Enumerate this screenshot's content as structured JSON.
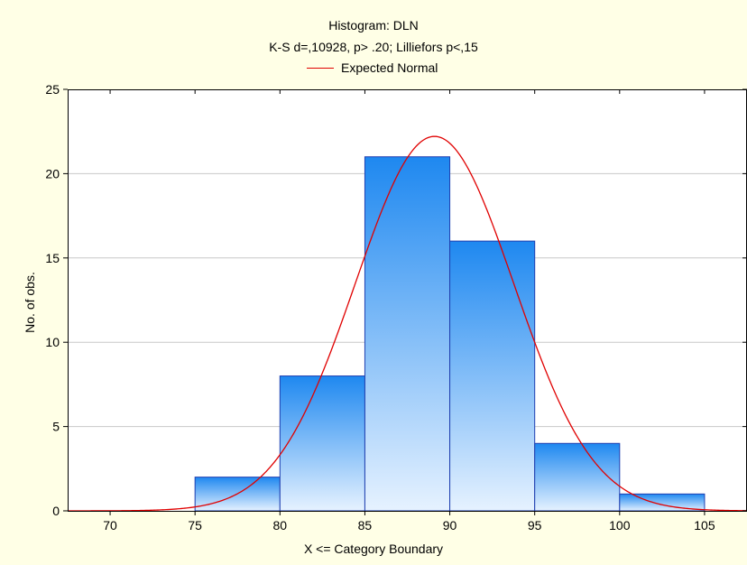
{
  "chart_data": {
    "type": "bar",
    "title": "Histogram: DLN",
    "subtitle": "K-S d=,10928, p> .20; Lilliefors p<,15",
    "xlabel": "X <= Category Boundary",
    "ylabel": "No. of obs.",
    "xlim": [
      67.5,
      107.5
    ],
    "ylim": [
      0,
      25
    ],
    "x_ticks": [
      70,
      75,
      80,
      85,
      90,
      95,
      100,
      105
    ],
    "y_ticks": [
      0,
      5,
      10,
      15,
      20,
      25
    ],
    "grid": true,
    "bins": [
      {
        "from": 75,
        "to": 80,
        "count": 2
      },
      {
        "from": 80,
        "to": 85,
        "count": 8
      },
      {
        "from": 85,
        "to": 90,
        "count": 21
      },
      {
        "from": 90,
        "to": 95,
        "count": 16
      },
      {
        "from": 95,
        "to": 100,
        "count": 4
      },
      {
        "from": 100,
        "to": 105,
        "count": 1
      }
    ],
    "series": [
      {
        "name": "Expected Normal",
        "type": "line",
        "color": "#E00000",
        "mean": 89.1,
        "sd": 4.67,
        "n": 52,
        "bin_width": 5
      }
    ],
    "legend_position": "top-center",
    "colors": {
      "bar_top": "#1E88F0",
      "bar_bottom": "#E6F2FF",
      "bar_edge": "#1F3FB0",
      "background": "#FFFFE6",
      "plot_bg": "#FFFFFF",
      "grid": "#C8C8C8"
    }
  }
}
